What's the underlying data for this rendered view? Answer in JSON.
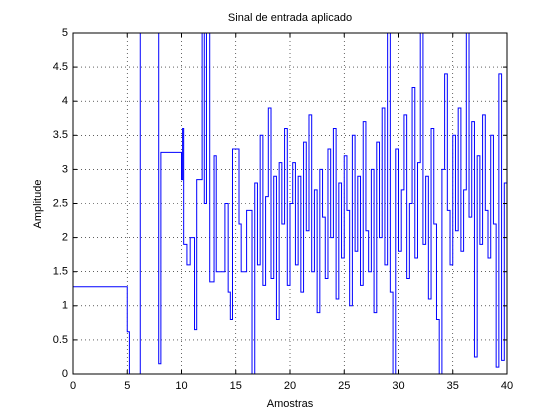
{
  "chart_data": {
    "type": "line",
    "drawstyle": "steps-post",
    "title": "Sinal de entrada aplicado",
    "xlabel": "Amostras",
    "ylabel": "Amplitude",
    "xlim": [
      0,
      40
    ],
    "ylim": [
      0,
      5
    ],
    "xticks": [
      0,
      5,
      10,
      15,
      20,
      25,
      30,
      35,
      40
    ],
    "yticks": [
      0,
      0.5,
      1,
      1.5,
      2,
      2.5,
      3,
      3.5,
      4,
      4.5,
      5
    ],
    "grid": true,
    "series": [
      {
        "color": "#0000ff",
        "x": [
          0,
          5,
          5.2,
          6.2,
          7.9,
          8.1,
          10,
          10.1,
          10.2,
          10.5,
          10.8,
          11.2,
          11.4,
          11.9,
          12.1,
          12.3,
          12.6,
          13,
          13.2,
          14,
          14.3,
          14.5,
          14.7,
          15.3,
          15.5,
          16,
          16.5,
          16.75,
          17,
          17.25,
          17.5,
          17.75,
          18,
          18.25,
          18.5,
          18.75,
          19,
          19.25,
          19.5,
          19.75,
          20,
          20.25,
          20.5,
          20.75,
          21,
          21.25,
          21.5,
          21.75,
          22,
          22.25,
          22.5,
          22.75,
          23,
          23.25,
          23.5,
          23.75,
          24,
          24.25,
          24.5,
          24.75,
          25,
          25.25,
          25.5,
          25.75,
          26,
          26.25,
          26.5,
          26.75,
          27,
          27.25,
          27.5,
          27.75,
          28,
          28.25,
          28.5,
          28.75,
          29,
          29.25,
          29.5,
          29.75,
          30,
          30.25,
          30.5,
          30.75,
          31,
          31.25,
          31.5,
          31.75,
          32,
          32.25,
          32.5,
          32.75,
          33,
          33.25,
          33.5,
          33.75,
          34,
          34.25,
          34.5,
          34.75,
          35,
          35.25,
          35.5,
          35.75,
          36,
          36.25,
          36.5,
          36.75,
          37,
          37.25,
          37.5,
          37.75,
          38,
          38.25,
          38.5,
          38.75,
          39,
          39.25,
          39.5,
          39.75,
          40
        ],
        "values": [
          1.28,
          0.62,
          -0.5,
          5.5,
          0.15,
          3.25,
          2.85,
          3.6,
          1.9,
          1.6,
          2.0,
          0.65,
          2.85,
          5.5,
          2.5,
          5.5,
          1.35,
          3.2,
          1.5,
          2.5,
          1.2,
          0.8,
          3.3,
          2.2,
          1.5,
          2.4,
          -0.5,
          2.8,
          1.6,
          3.5,
          1.3,
          2.6,
          3.9,
          1.4,
          2.9,
          0.8,
          3.1,
          2.2,
          3.6,
          1.3,
          2.5,
          3.1,
          1.6,
          2.9,
          1.2,
          3.4,
          2.1,
          3.8,
          1.5,
          2.7,
          0.9,
          3.0,
          2.3,
          1.4,
          3.3,
          2.0,
          3.6,
          1.1,
          2.8,
          1.7,
          3.2,
          2.4,
          1.0,
          3.5,
          1.8,
          2.9,
          1.3,
          3.7,
          2.1,
          1.5,
          3.0,
          0.9,
          3.4,
          2.0,
          3.9,
          1.6,
          5.5,
          1.2,
          -0.5,
          3.3,
          1.8,
          2.7,
          3.8,
          1.4,
          2.5,
          4.2,
          1.7,
          3.1,
          5.5,
          1.9,
          2.9,
          1.1,
          3.6,
          2.2,
          0.8,
          -0.5,
          3.0,
          4.4,
          2.4,
          1.6,
          3.5,
          2.1,
          3.9,
          1.8,
          2.7,
          5.5,
          2.3,
          3.7,
          0.25,
          3.2,
          1.9,
          3.8,
          2.4,
          1.7,
          3.5,
          2.2,
          0.1,
          4.4,
          0.2,
          2.8,
          2.5
        ]
      }
    ]
  }
}
